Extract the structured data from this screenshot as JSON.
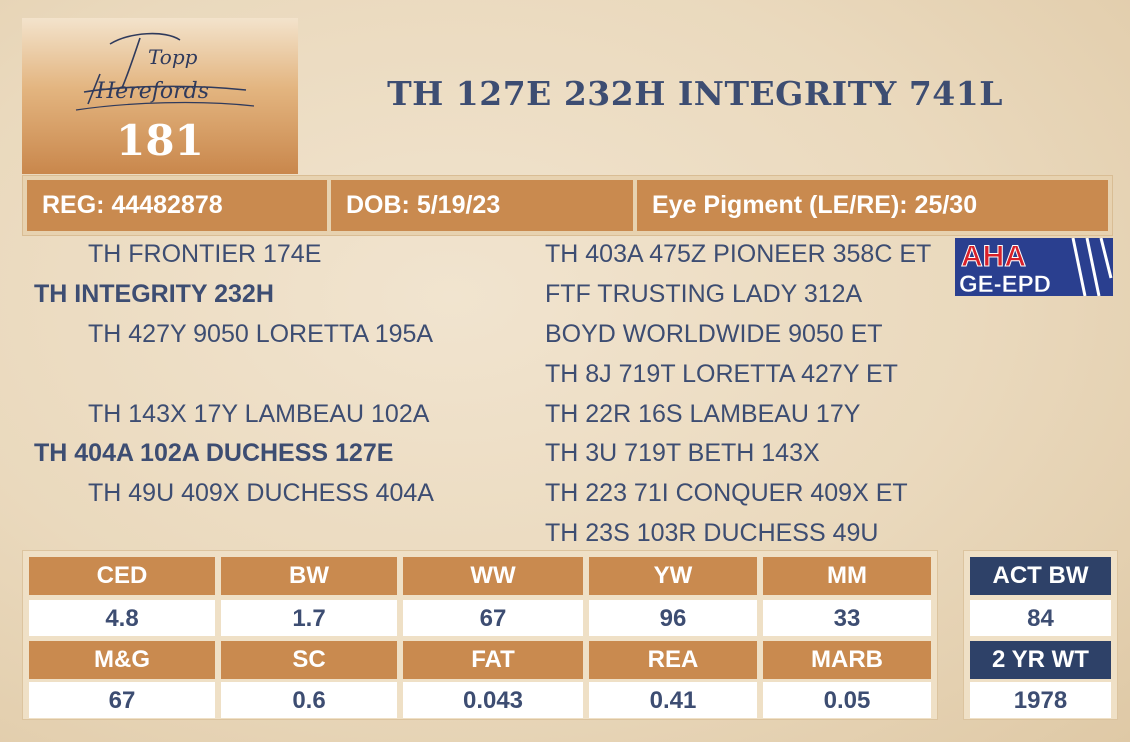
{
  "header": {
    "logo_text": "Topp Herefords",
    "lot_number": "181",
    "animal_name": "TH 127E 232H INTEGRITY 741L"
  },
  "info_bar": {
    "reg": "REG: 44482878",
    "dob": "DOB: 5/19/23",
    "eye_pigment": "Eye Pigment (LE/RE): 25/30"
  },
  "pedigree": {
    "sire": "TH INTEGRITY 232H",
    "sire_sire": "TH FRONTIER 174E",
    "sire_dam": "TH 427Y 9050 LORETTA 195A",
    "dam": "TH 404A 102A DUCHESS 127E",
    "dam_sire": "TH 143X 17Y LAMBEAU 102A",
    "dam_dam": "TH 49U 409X DUCHESS 404A",
    "third_gen": [
      "TH 403A 475Z PIONEER 358C ET",
      "FTF TRUSTING LADY 312A",
      "BOYD WORLDWIDE 9050 ET",
      "TH 8J 719T LORETTA 427Y ET",
      "TH 22R 16S LAMBEAU 17Y",
      "TH 3U 719T BETH 143X",
      "TH 223 71I CONQUER 409X ET",
      "TH 23S 103R DUCHESS 49U"
    ]
  },
  "badge": {
    "line1": "AHA",
    "line2": "GE-EPD"
  },
  "epd": {
    "row1_headers": [
      "CED",
      "BW",
      "WW",
      "YW",
      "MM"
    ],
    "row1_values": [
      "4.8",
      "1.7",
      "67",
      "96",
      "33"
    ],
    "row2_headers": [
      "M&G",
      "SC",
      "FAT",
      "REA",
      "MARB"
    ],
    "row2_values": [
      "67",
      "0.6",
      "0.043",
      "0.41",
      "0.05"
    ]
  },
  "side": {
    "act_bw_label": "ACT BW",
    "act_bw_value": "84",
    "yr_wt_label": "2 YR WT",
    "yr_wt_value": "1978"
  },
  "colors": {
    "accent_tan": "#c98a4f",
    "navy": "#2e4168",
    "text_navy": "#3d4d72",
    "badge_red": "#d8202a"
  }
}
